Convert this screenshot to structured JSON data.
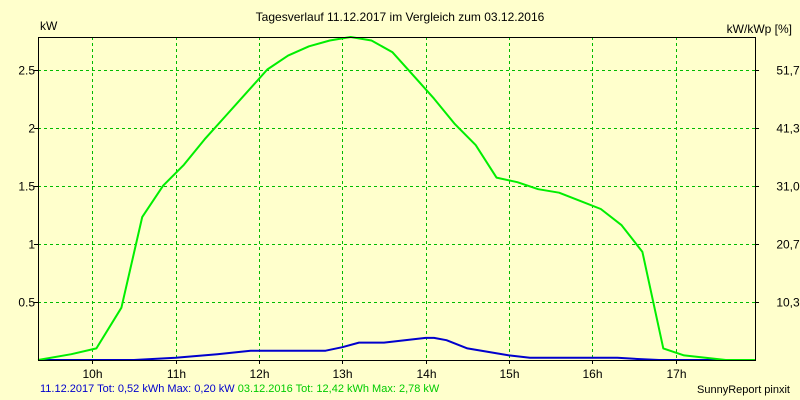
{
  "header": {
    "title": "Tagesverlauf 11.12.2017 im Vergleich zum 03.12.2016",
    "unit_left": "kW",
    "unit_right": "kW/kWp [%]"
  },
  "footer": {
    "series1_text": "11.12.2017 Tot: 0,52 kWh Max: 0,20 kW",
    "series2_text": "03.12.2016 Tot: 12,42 kWh Max: 2,78 kW",
    "credit": "SunnyReport pinxit"
  },
  "chart_data": {
    "type": "line",
    "title": "Tagesverlauf 11.12.2017 im Vergleich zum 03.12.2016",
    "xlabel": "",
    "ylabel": "kW",
    "y2label": "kW/kWp [%]",
    "xlim": [
      9.35,
      17.95
    ],
    "ylim": [
      0,
      2.78
    ],
    "x_ticks": [
      10,
      11,
      12,
      13,
      14,
      15,
      16,
      17
    ],
    "x_tick_labels": [
      "10h",
      "11h",
      "12h",
      "13h",
      "14h",
      "15h",
      "16h",
      "17h"
    ],
    "y_ticks": [
      0.5,
      1,
      1.5,
      2,
      2.5
    ],
    "y_tick_labels": [
      "0.5",
      "1",
      "1.5",
      "2",
      "2.5"
    ],
    "y2_tick_labels": [
      "10,3",
      "20,7",
      "31,0",
      "41,3",
      "51,7"
    ],
    "grid": true,
    "series": [
      {
        "name": "11.12.2017",
        "color": "#0000cc",
        "x": [
          9.35,
          10.5,
          11.0,
          11.5,
          11.9,
          12.0,
          12.5,
          12.8,
          13.0,
          13.2,
          13.5,
          13.75,
          14.0,
          14.1,
          14.25,
          14.5,
          14.75,
          15.0,
          15.25,
          15.5,
          16.0,
          16.3,
          16.5,
          16.8,
          17.0,
          17.5,
          17.95
        ],
        "values": [
          0.0,
          0.0,
          0.02,
          0.05,
          0.08,
          0.08,
          0.08,
          0.08,
          0.11,
          0.15,
          0.15,
          0.17,
          0.19,
          0.19,
          0.17,
          0.1,
          0.07,
          0.04,
          0.02,
          0.02,
          0.02,
          0.02,
          0.01,
          0.0,
          0.0,
          0.0,
          0.0
        ]
      },
      {
        "name": "03.12.2016",
        "color": "#00ee00",
        "x": [
          9.35,
          9.75,
          10.05,
          10.35,
          10.6,
          10.85,
          11.1,
          11.35,
          11.6,
          11.85,
          12.1,
          12.35,
          12.6,
          12.85,
          13.1,
          13.35,
          13.6,
          13.85,
          14.1,
          14.35,
          14.6,
          14.85,
          15.1,
          15.35,
          15.6,
          15.85,
          16.1,
          16.35,
          16.6,
          16.85,
          17.1,
          17.6,
          17.95
        ],
        "values": [
          0.0,
          0.05,
          0.1,
          0.45,
          1.23,
          1.5,
          1.68,
          1.9,
          2.1,
          2.3,
          2.5,
          2.62,
          2.7,
          2.75,
          2.78,
          2.75,
          2.65,
          2.45,
          2.25,
          2.03,
          1.85,
          1.57,
          1.53,
          1.47,
          1.44,
          1.37,
          1.3,
          1.16,
          0.93,
          0.1,
          0.04,
          0.0,
          0.0
        ]
      }
    ]
  }
}
